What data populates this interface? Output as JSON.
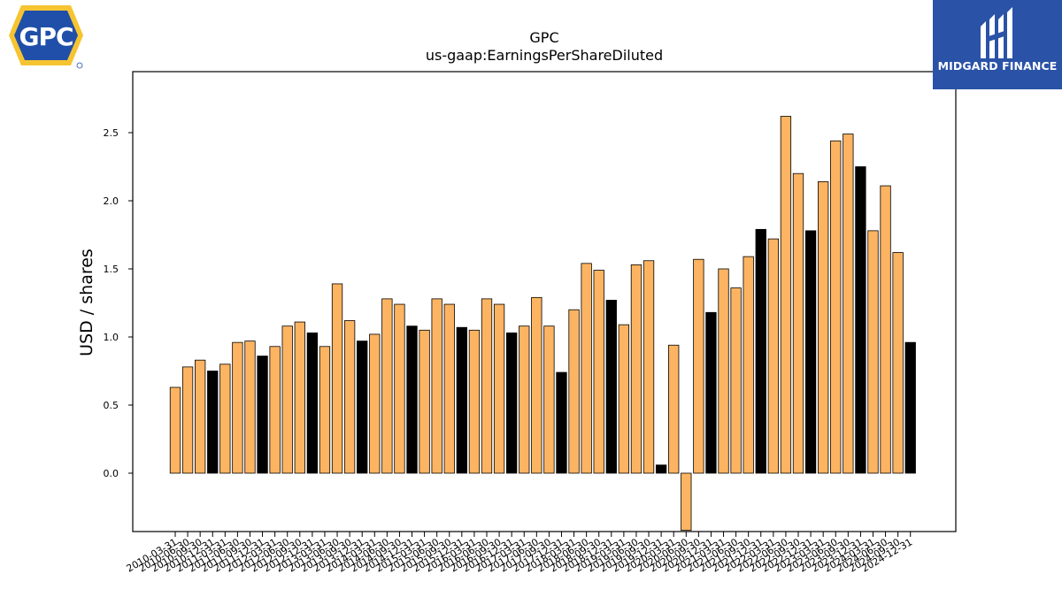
{
  "logos": {
    "left_text": "GPC",
    "right_text": "MIDGARD FINANCE"
  },
  "chart_data": {
    "type": "bar",
    "title": "GPC",
    "subtitle": "us-gaap:EarningsPerShareDiluted",
    "xlabel": "",
    "ylabel": "USD / shares",
    "ylim": [
      -0.42,
      2.93
    ],
    "yticks": [
      0.0,
      0.5,
      1.0,
      1.5,
      2.0,
      2.5
    ],
    "ytick_labels": [
      "0.0",
      "0.5",
      "1.0",
      "1.5",
      "2.0",
      "2.5"
    ],
    "grid": false,
    "colors": {
      "quarter": "#fdb462",
      "annual": "#000000",
      "edge": "#000000"
    },
    "categories": [
      "2010-03-31",
      "2010-06-30",
      "2010-09-30",
      "2010-12-31",
      "2011-03-31",
      "2011-06-30",
      "2011-09-30",
      "2011-12-31",
      "2012-03-31",
      "2012-06-30",
      "2012-09-30",
      "2012-12-31",
      "2013-03-31",
      "2013-06-30",
      "2013-09-30",
      "2013-12-31",
      "2014-03-31",
      "2014-06-30",
      "2014-09-30",
      "2014-12-31",
      "2015-03-31",
      "2015-06-30",
      "2015-09-30",
      "2015-12-31",
      "2016-03-31",
      "2016-06-30",
      "2016-09-30",
      "2016-12-31",
      "2017-03-31",
      "2017-06-30",
      "2017-09-30",
      "2017-12-31",
      "2018-03-31",
      "2018-06-30",
      "2018-09-30",
      "2018-12-31",
      "2019-03-31",
      "2019-06-30",
      "2019-09-30",
      "2019-12-31",
      "2020-03-31",
      "2020-06-30",
      "2020-09-30",
      "2020-12-31",
      "2021-03-31",
      "2021-06-30",
      "2021-09-30",
      "2021-12-31",
      "2022-03-31",
      "2022-06-30",
      "2022-09-30",
      "2022-12-31",
      "2023-03-31",
      "2023-06-30",
      "2023-09-30",
      "2023-12-31",
      "2024-03-31",
      "2024-06-30",
      "2024-09-30",
      "2024-12-31"
    ],
    "values": [
      0.63,
      0.78,
      0.83,
      0.75,
      0.8,
      0.96,
      0.97,
      0.86,
      0.93,
      1.08,
      1.11,
      1.03,
      0.93,
      1.39,
      1.12,
      0.97,
      1.02,
      1.28,
      1.24,
      1.08,
      1.05,
      1.28,
      1.24,
      1.07,
      1.05,
      1.28,
      1.24,
      1.03,
      1.08,
      1.29,
      1.08,
      0.74,
      1.2,
      1.54,
      1.49,
      1.27,
      1.09,
      1.53,
      1.56,
      0.06,
      0.94,
      -0.42,
      1.57,
      1.18,
      1.5,
      1.36,
      1.59,
      1.79,
      1.72,
      2.62,
      2.2,
      1.78,
      2.14,
      2.44,
      2.49,
      2.25,
      1.78,
      2.11,
      1.62,
      0.96
    ],
    "annual_flags": [
      false,
      false,
      false,
      true,
      false,
      false,
      false,
      true,
      false,
      false,
      false,
      true,
      false,
      false,
      false,
      true,
      false,
      false,
      false,
      true,
      false,
      false,
      false,
      true,
      false,
      false,
      false,
      true,
      false,
      false,
      false,
      true,
      false,
      false,
      false,
      true,
      false,
      false,
      false,
      true,
      false,
      false,
      false,
      true,
      false,
      false,
      false,
      true,
      false,
      false,
      false,
      true,
      false,
      false,
      false,
      true,
      false,
      false,
      false,
      true
    ]
  }
}
